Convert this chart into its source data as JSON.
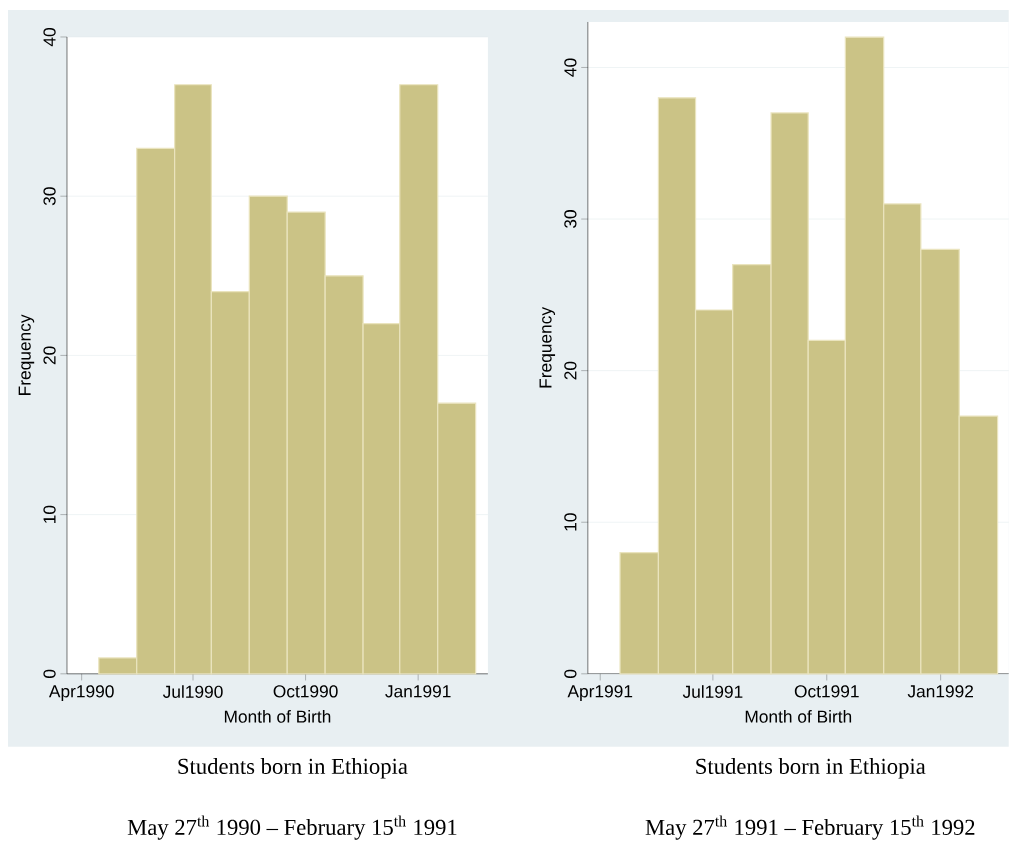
{
  "chart_data": [
    {
      "type": "histogram",
      "xlabel": "Month of Birth",
      "ylabel": "Frequency",
      "color": "#cbc386",
      "grid": "y",
      "bins": [
        "1990-04-15",
        "1990-05-16",
        "1990-06-16",
        "1990-07-16",
        "1990-08-16",
        "1990-09-16",
        "1990-10-17",
        "1990-11-17",
        "1990-12-17",
        "1991-01-17",
        "1991-02-17"
      ],
      "values": [
        1,
        33,
        37,
        24,
        30,
        29,
        25,
        22,
        37,
        17
      ],
      "xlim": [
        "1990-03-20",
        "1991-02-27"
      ],
      "ylim": [
        0,
        40
      ],
      "xticks": [
        {
          "value": "1990-04-01",
          "label": "Apr1990"
        },
        {
          "value": "1990-07-01",
          "label": "Jul1990"
        },
        {
          "value": "1990-10-01",
          "label": "Oct1990"
        },
        {
          "value": "1991-01-01",
          "label": "Jan1991"
        }
      ],
      "yticks": [
        0,
        10,
        20,
        30,
        40
      ],
      "annotations": [
        "Students born in Ethiopia",
        "May 27$^{th}$ 1990 – February 15$^{th}$ 1991"
      ]
    },
    {
      "type": "histogram",
      "xlabel": "Month of Birth",
      "ylabel": "Frequency",
      "color": "#cbc386",
      "grid": "y",
      "bins": [
        "1991-04-17",
        "1991-05-18",
        "1991-06-17",
        "1991-07-17",
        "1991-08-17",
        "1991-09-16",
        "1991-10-16",
        "1991-11-16",
        "1991-12-16",
        "1992-01-16",
        "1992-02-16"
      ],
      "values": [
        8,
        38,
        24,
        27,
        37,
        22,
        42,
        31,
        28,
        17
      ],
      "xlim": [
        "1991-03-22",
        "1992-02-25"
      ],
      "ylim": [
        0,
        43
      ],
      "xticks": [
        {
          "value": "1991-04-01",
          "label": "Apr1991"
        },
        {
          "value": "1991-07-01",
          "label": "Jul1991"
        },
        {
          "value": "1991-10-01",
          "label": "Oct1991"
        },
        {
          "value": "1992-01-01",
          "label": "Jan1992"
        }
      ],
      "yticks": [
        0,
        10,
        20,
        30,
        40
      ],
      "annotations": [
        "Students born in Ethiopia",
        "May 27$^{th}$ 1991 – February 15$^{th}$ 1992"
      ]
    }
  ]
}
